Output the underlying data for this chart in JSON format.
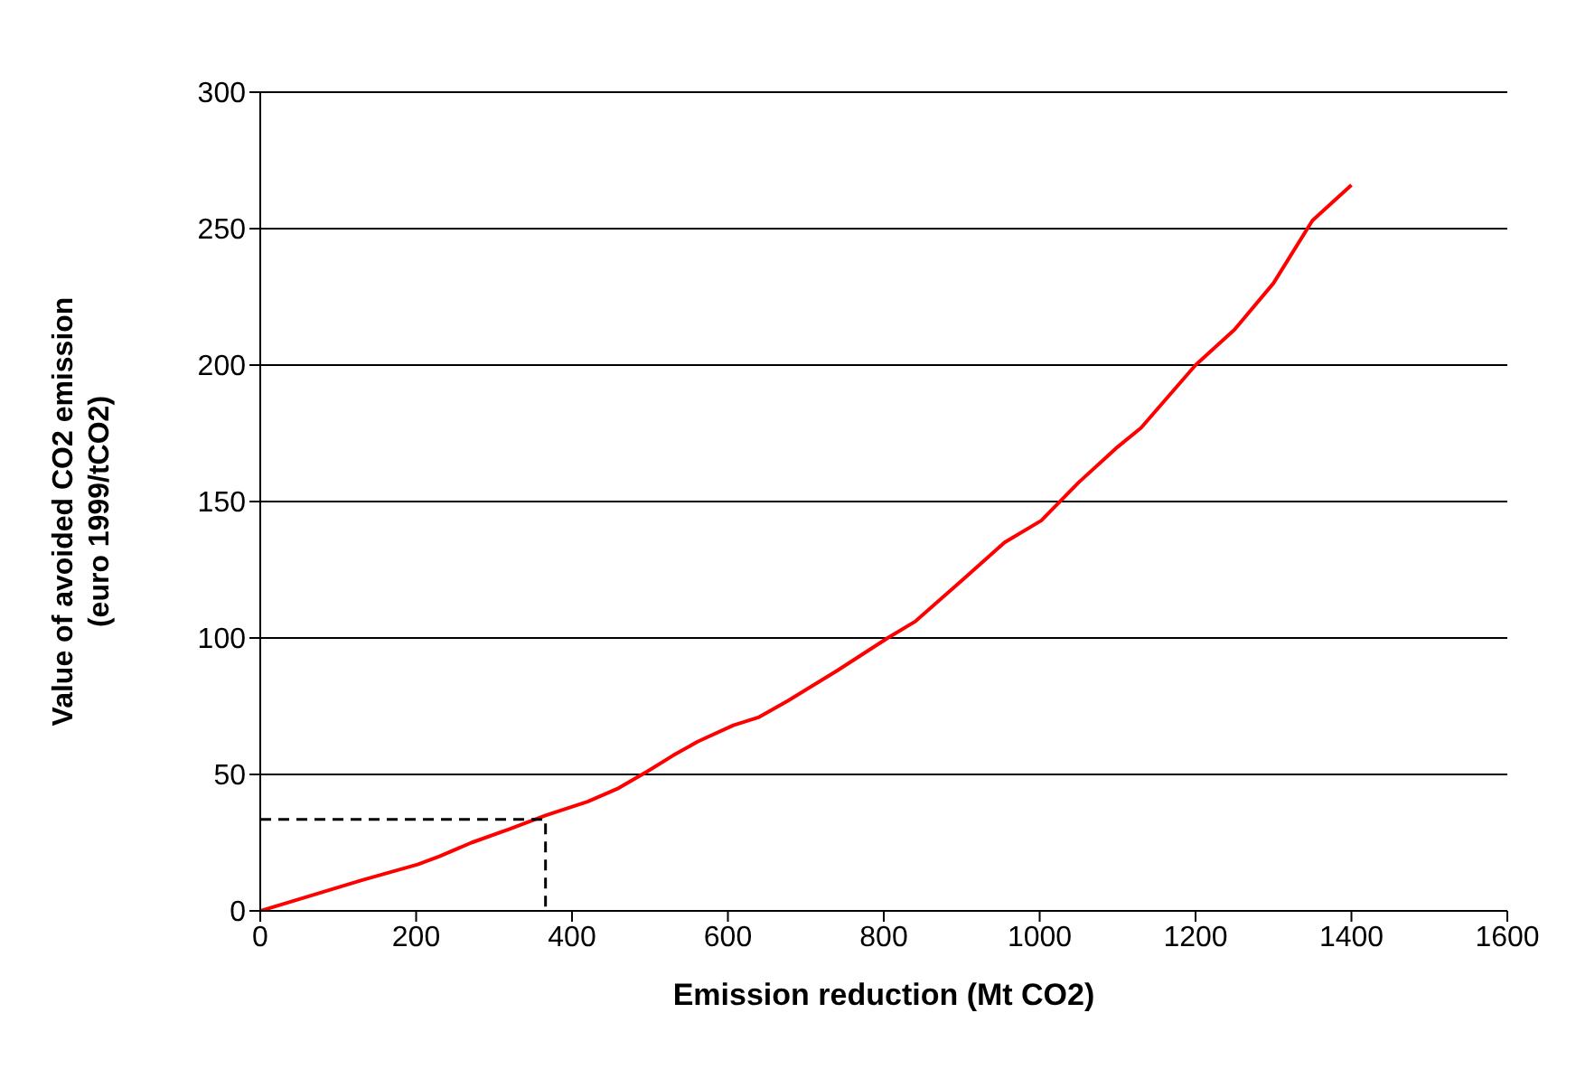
{
  "chart_data": {
    "type": "line",
    "xlabel": "Emission reduction (Mt CO2)",
    "ylabel": "Value of avoided CO2 emission\n(euro 1999/tCO2)",
    "xlim": [
      0,
      1600
    ],
    "xticks": [
      0,
      200,
      400,
      600,
      800,
      1000,
      1200,
      1400,
      1600
    ],
    "ylim": [
      0,
      300
    ],
    "yticks": [
      0,
      50,
      100,
      150,
      200,
      250,
      300
    ],
    "grid": "y",
    "marker": "none",
    "series": [
      {
        "color": "#ff0000",
        "line_style": "solid",
        "x": [
          0,
          63,
          132,
          202,
          230,
          271,
          320,
          366,
          420,
          460,
          496,
          530,
          561,
          607,
          640,
          677,
          740,
          805,
          840,
          900,
          955,
          1002,
          1050,
          1100,
          1130,
          1200,
          1250,
          1300,
          1350,
          1400
        ],
        "values": [
          0,
          5.4,
          11.4,
          17,
          20,
          25,
          30,
          35,
          40,
          45,
          51,
          57,
          62,
          68,
          71,
          77,
          88,
          100,
          106,
          121,
          135,
          143,
          157,
          170,
          177,
          200,
          213,
          230,
          253,
          266
        ]
      },
      {
        "color": "#000000",
        "line_style": "dashed",
        "x": [
          0,
          366,
          366
        ],
        "values": [
          33.5,
          33.5,
          0
        ]
      }
    ]
  }
}
